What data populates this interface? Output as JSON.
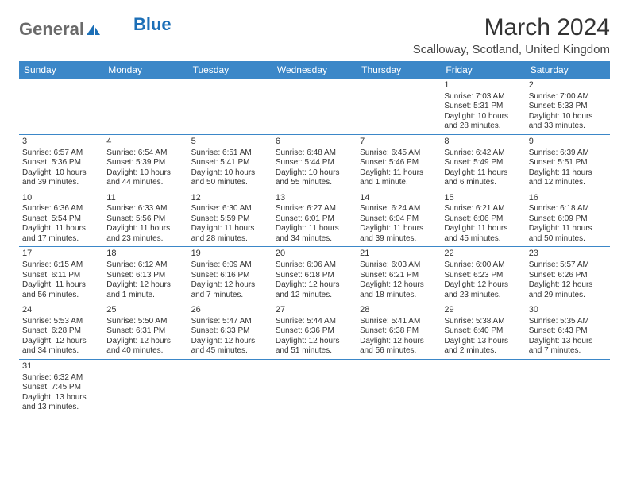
{
  "logo": {
    "text1": "General",
    "text2": "Blue"
  },
  "title": "March 2024",
  "location": "Scalloway, Scotland, United Kingdom",
  "colors": {
    "header_bg": "#3b87c8",
    "header_text": "#ffffff",
    "border": "#3b87c8",
    "logo_gray": "#6a6a6a",
    "logo_blue": "#1c6fb7"
  },
  "weekdays": [
    "Sunday",
    "Monday",
    "Tuesday",
    "Wednesday",
    "Thursday",
    "Friday",
    "Saturday"
  ],
  "weeks": [
    [
      null,
      null,
      null,
      null,
      null,
      {
        "n": "1",
        "sr": "Sunrise: 7:03 AM",
        "ss": "Sunset: 5:31 PM",
        "dl": "Daylight: 10 hours and 28 minutes."
      },
      {
        "n": "2",
        "sr": "Sunrise: 7:00 AM",
        "ss": "Sunset: 5:33 PM",
        "dl": "Daylight: 10 hours and 33 minutes."
      }
    ],
    [
      {
        "n": "3",
        "sr": "Sunrise: 6:57 AM",
        "ss": "Sunset: 5:36 PM",
        "dl": "Daylight: 10 hours and 39 minutes."
      },
      {
        "n": "4",
        "sr": "Sunrise: 6:54 AM",
        "ss": "Sunset: 5:39 PM",
        "dl": "Daylight: 10 hours and 44 minutes."
      },
      {
        "n": "5",
        "sr": "Sunrise: 6:51 AM",
        "ss": "Sunset: 5:41 PM",
        "dl": "Daylight: 10 hours and 50 minutes."
      },
      {
        "n": "6",
        "sr": "Sunrise: 6:48 AM",
        "ss": "Sunset: 5:44 PM",
        "dl": "Daylight: 10 hours and 55 minutes."
      },
      {
        "n": "7",
        "sr": "Sunrise: 6:45 AM",
        "ss": "Sunset: 5:46 PM",
        "dl": "Daylight: 11 hours and 1 minute."
      },
      {
        "n": "8",
        "sr": "Sunrise: 6:42 AM",
        "ss": "Sunset: 5:49 PM",
        "dl": "Daylight: 11 hours and 6 minutes."
      },
      {
        "n": "9",
        "sr": "Sunrise: 6:39 AM",
        "ss": "Sunset: 5:51 PM",
        "dl": "Daylight: 11 hours and 12 minutes."
      }
    ],
    [
      {
        "n": "10",
        "sr": "Sunrise: 6:36 AM",
        "ss": "Sunset: 5:54 PM",
        "dl": "Daylight: 11 hours and 17 minutes."
      },
      {
        "n": "11",
        "sr": "Sunrise: 6:33 AM",
        "ss": "Sunset: 5:56 PM",
        "dl": "Daylight: 11 hours and 23 minutes."
      },
      {
        "n": "12",
        "sr": "Sunrise: 6:30 AM",
        "ss": "Sunset: 5:59 PM",
        "dl": "Daylight: 11 hours and 28 minutes."
      },
      {
        "n": "13",
        "sr": "Sunrise: 6:27 AM",
        "ss": "Sunset: 6:01 PM",
        "dl": "Daylight: 11 hours and 34 minutes."
      },
      {
        "n": "14",
        "sr": "Sunrise: 6:24 AM",
        "ss": "Sunset: 6:04 PM",
        "dl": "Daylight: 11 hours and 39 minutes."
      },
      {
        "n": "15",
        "sr": "Sunrise: 6:21 AM",
        "ss": "Sunset: 6:06 PM",
        "dl": "Daylight: 11 hours and 45 minutes."
      },
      {
        "n": "16",
        "sr": "Sunrise: 6:18 AM",
        "ss": "Sunset: 6:09 PM",
        "dl": "Daylight: 11 hours and 50 minutes."
      }
    ],
    [
      {
        "n": "17",
        "sr": "Sunrise: 6:15 AM",
        "ss": "Sunset: 6:11 PM",
        "dl": "Daylight: 11 hours and 56 minutes."
      },
      {
        "n": "18",
        "sr": "Sunrise: 6:12 AM",
        "ss": "Sunset: 6:13 PM",
        "dl": "Daylight: 12 hours and 1 minute."
      },
      {
        "n": "19",
        "sr": "Sunrise: 6:09 AM",
        "ss": "Sunset: 6:16 PM",
        "dl": "Daylight: 12 hours and 7 minutes."
      },
      {
        "n": "20",
        "sr": "Sunrise: 6:06 AM",
        "ss": "Sunset: 6:18 PM",
        "dl": "Daylight: 12 hours and 12 minutes."
      },
      {
        "n": "21",
        "sr": "Sunrise: 6:03 AM",
        "ss": "Sunset: 6:21 PM",
        "dl": "Daylight: 12 hours and 18 minutes."
      },
      {
        "n": "22",
        "sr": "Sunrise: 6:00 AM",
        "ss": "Sunset: 6:23 PM",
        "dl": "Daylight: 12 hours and 23 minutes."
      },
      {
        "n": "23",
        "sr": "Sunrise: 5:57 AM",
        "ss": "Sunset: 6:26 PM",
        "dl": "Daylight: 12 hours and 29 minutes."
      }
    ],
    [
      {
        "n": "24",
        "sr": "Sunrise: 5:53 AM",
        "ss": "Sunset: 6:28 PM",
        "dl": "Daylight: 12 hours and 34 minutes."
      },
      {
        "n": "25",
        "sr": "Sunrise: 5:50 AM",
        "ss": "Sunset: 6:31 PM",
        "dl": "Daylight: 12 hours and 40 minutes."
      },
      {
        "n": "26",
        "sr": "Sunrise: 5:47 AM",
        "ss": "Sunset: 6:33 PM",
        "dl": "Daylight: 12 hours and 45 minutes."
      },
      {
        "n": "27",
        "sr": "Sunrise: 5:44 AM",
        "ss": "Sunset: 6:36 PM",
        "dl": "Daylight: 12 hours and 51 minutes."
      },
      {
        "n": "28",
        "sr": "Sunrise: 5:41 AM",
        "ss": "Sunset: 6:38 PM",
        "dl": "Daylight: 12 hours and 56 minutes."
      },
      {
        "n": "29",
        "sr": "Sunrise: 5:38 AM",
        "ss": "Sunset: 6:40 PM",
        "dl": "Daylight: 13 hours and 2 minutes."
      },
      {
        "n": "30",
        "sr": "Sunrise: 5:35 AM",
        "ss": "Sunset: 6:43 PM",
        "dl": "Daylight: 13 hours and 7 minutes."
      }
    ],
    [
      {
        "n": "31",
        "sr": "Sunrise: 6:32 AM",
        "ss": "Sunset: 7:45 PM",
        "dl": "Daylight: 13 hours and 13 minutes."
      },
      null,
      null,
      null,
      null,
      null,
      null
    ]
  ]
}
